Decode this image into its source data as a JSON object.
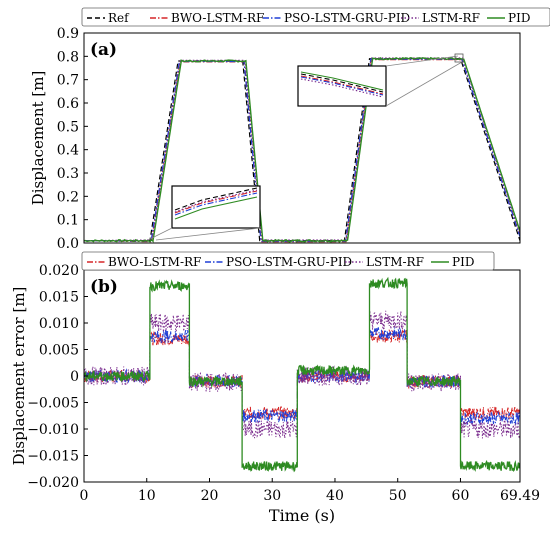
{
  "chart_data": [
    {
      "type": "line",
      "panel_label": "(a)",
      "xlim": [
        0,
        69.49
      ],
      "ylim": [
        0,
        0.9
      ],
      "ylabel": "Displacement [m]",
      "xticks": [],
      "yticks": [
        "0.0",
        "0.1",
        "0.2",
        "0.3",
        "0.4",
        "0.5",
        "0.6",
        "0.7",
        "0.8",
        "0.9"
      ],
      "ytick_values": [
        0,
        0.1,
        0.2,
        0.3,
        0.4,
        0.5,
        0.6,
        0.7,
        0.8,
        0.9
      ],
      "grid": false,
      "legend_position": "top",
      "series": [
        {
          "name": "Ref",
          "color": "#000000",
          "dash": "dashed",
          "x": [
            0,
            10.5,
            15,
            25.3,
            28,
            33.5,
            39,
            41.5,
            45.5,
            50.5,
            60,
            69.49
          ],
          "y": [
            0.01,
            0.01,
            0.78,
            0.78,
            0.01,
            0.01,
            0.01,
            0.01,
            0.79,
            0.79,
            0.79,
            0.01
          ]
        },
        {
          "name": "BWO-LSTM-RF",
          "color": "#d62728",
          "dash": "dashdot",
          "x": [
            0,
            10.5,
            15,
            25.3,
            28,
            33.5,
            39,
            41.5,
            45.5,
            50.5,
            60,
            69.49
          ],
          "y": [
            0.01,
            0.01,
            0.78,
            0.78,
            0.01,
            0.01,
            0.01,
            0.01,
            0.79,
            0.79,
            0.79,
            0.01
          ]
        },
        {
          "name": "PSO-LSTM-GRU-PID",
          "color": "#1f3fd6",
          "dash": "dashdot",
          "x": [
            0,
            10.5,
            15,
            25.3,
            28,
            33.5,
            39,
            41.5,
            45.5,
            50.5,
            60,
            69.49
          ],
          "y": [
            0.01,
            0.01,
            0.78,
            0.78,
            0.01,
            0.01,
            0.01,
            0.01,
            0.79,
            0.79,
            0.79,
            0.01
          ]
        },
        {
          "name": "LSTM-RF",
          "color": "#7b2d8e",
          "dash": "dotted",
          "x": [
            0,
            10.5,
            15,
            25.3,
            28,
            33.5,
            39,
            41.5,
            45.5,
            50.5,
            60,
            69.49
          ],
          "y": [
            0.01,
            0.01,
            0.78,
            0.78,
            0.01,
            0.01,
            0.01,
            0.01,
            0.79,
            0.79,
            0.79,
            0.01
          ]
        },
        {
          "name": "PID",
          "color": "#2e8b22",
          "dash": "solid",
          "x": [
            0,
            10.5,
            15,
            25.3,
            28,
            33.5,
            39,
            41.5,
            45.5,
            50.5,
            60,
            69.49
          ],
          "y": [
            0.01,
            0.01,
            0.78,
            0.78,
            0.01,
            0.01,
            0.01,
            0.01,
            0.79,
            0.79,
            0.79,
            0.01
          ]
        }
      ]
    },
    {
      "type": "line",
      "panel_label": "(b)",
      "xlim": [
        0,
        69.49
      ],
      "ylim": [
        -0.02,
        0.02
      ],
      "xlabel": "Time (s)",
      "ylabel": "Displacement error [m]",
      "xticks": [
        "0",
        "10",
        "20",
        "30",
        "40",
        "50",
        "60",
        "69.49"
      ],
      "xtick_values": [
        0,
        10,
        20,
        30,
        40,
        50,
        60,
        69.49
      ],
      "yticks": [
        "−0.020",
        "−0.015",
        "−0.010",
        "−0.005",
        "0",
        "0.005",
        "0.010",
        "0.015",
        "0.020"
      ],
      "ytick_values": [
        -0.02,
        -0.015,
        -0.01,
        -0.005,
        0,
        0.005,
        0.01,
        0.015,
        0.02
      ],
      "grid": false,
      "legend_position": "top",
      "series": [
        {
          "name": "BWO-LSTM-RF",
          "color": "#d62728",
          "dash": "dashdot",
          "levels": [
            [
              0,
              10.5,
              0
            ],
            [
              10.5,
              16.8,
              0.007
            ],
            [
              16.8,
              25.2,
              -0.001
            ],
            [
              25.2,
              34,
              -0.007
            ],
            [
              34,
              45.5,
              0
            ],
            [
              45.5,
              51.5,
              0.0075
            ],
            [
              51.5,
              60,
              -0.001
            ],
            [
              60,
              69.49,
              -0.007
            ]
          ]
        },
        {
          "name": "PSO-LSTM-GRU-PID",
          "color": "#1f3fd6",
          "dash": "dashdot",
          "levels": [
            [
              0,
              10.5,
              0
            ],
            [
              10.5,
              16.8,
              0.0075
            ],
            [
              16.8,
              25.2,
              -0.001
            ],
            [
              25.2,
              34,
              -0.0075
            ],
            [
              34,
              45.5,
              0
            ],
            [
              45.5,
              51.5,
              0.008
            ],
            [
              51.5,
              60,
              -0.001
            ],
            [
              60,
              69.49,
              -0.008
            ]
          ]
        },
        {
          "name": "LSTM-RF",
          "color": "#7b2d8e",
          "dash": "dotted",
          "levels": [
            [
              0,
              10.5,
              0
            ],
            [
              10.5,
              16.8,
              0.01
            ],
            [
              16.8,
              25.2,
              -0.0012
            ],
            [
              25.2,
              34,
              -0.01
            ],
            [
              34,
              45.5,
              0
            ],
            [
              45.5,
              51.5,
              0.0105
            ],
            [
              51.5,
              60,
              -0.0012
            ],
            [
              60,
              69.49,
              -0.01
            ]
          ]
        },
        {
          "name": "PID",
          "color": "#2e8b22",
          "dash": "solid",
          "levels": [
            [
              0,
              10.5,
              0
            ],
            [
              10.5,
              16.8,
              0.017
            ],
            [
              16.8,
              25.2,
              -0.001
            ],
            [
              25.2,
              34,
              -0.017
            ],
            [
              34,
              45.5,
              0.001
            ],
            [
              45.5,
              51.5,
              0.0175
            ],
            [
              51.5,
              60,
              -0.001
            ],
            [
              60,
              69.49,
              -0.017
            ]
          ]
        }
      ]
    }
  ]
}
